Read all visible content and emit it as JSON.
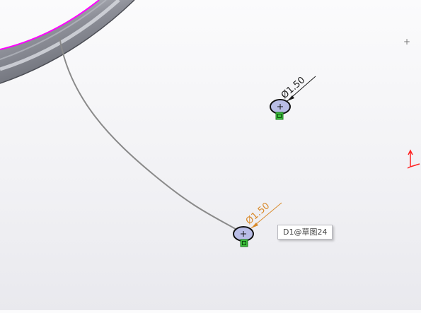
{
  "app": "SOLIDWORKS sketch viewport",
  "colors": {
    "background_top": "#fbfbfc",
    "background_bottom": "#e9e9ee",
    "edge_highlight": "#ff00ff",
    "model_shell": "#74777f",
    "spline": "#8a8a8a",
    "circle_fill": "#b9bde6",
    "dimension_black": "#1a1a1a",
    "dimension_selected": "#d98a2b",
    "sketch_relation": "#3bbf3b",
    "axis_red": "#ff2020"
  },
  "dimensions": [
    {
      "text": "Ø1.50",
      "state": "normal"
    },
    {
      "text": "Ø1.50",
      "state": "selected"
    }
  ],
  "tooltip": {
    "text": "D1@草图24"
  },
  "crosshair": {
    "symbol": "+"
  },
  "icons": {
    "relation": "sketch-relation-icon",
    "origin": "origin-triad-icon",
    "center": "center-point-icon"
  }
}
